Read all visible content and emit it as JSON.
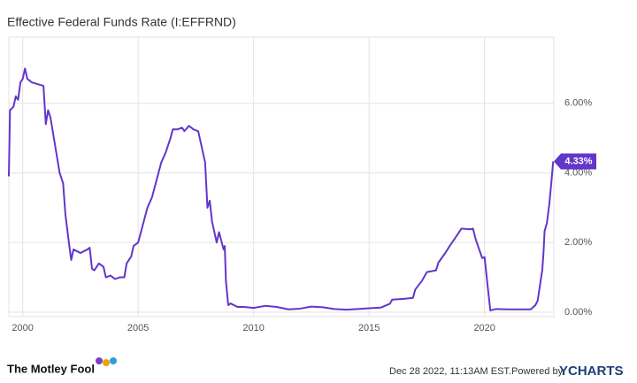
{
  "chart_data": {
    "type": "line",
    "title": "Effective Federal Funds Rate (I:EFFRND)",
    "series": [
      {
        "name": "Effective Federal Funds Rate",
        "color": "#6236c9",
        "x": [
          1999.4,
          1999.45,
          1999.6,
          1999.7,
          1999.8,
          1999.9,
          2000.0,
          2000.1,
          2000.2,
          2000.4,
          2000.9,
          2001.0,
          2001.1,
          2001.2,
          2001.4,
          2001.6,
          2001.75,
          2001.85,
          2002.0,
          2002.1,
          2002.2,
          2002.5,
          2002.8,
          2002.9,
          2003.0,
          2003.1,
          2003.3,
          2003.5,
          2003.6,
          2003.8,
          2004.0,
          2004.2,
          2004.4,
          2004.5,
          2004.7,
          2004.8,
          2005.0,
          2005.2,
          2005.4,
          2005.6,
          2005.8,
          2006.0,
          2006.2,
          2006.4,
          2006.5,
          2006.7,
          2006.9,
          2007.0,
          2007.2,
          2007.4,
          2007.6,
          2007.7,
          2007.9,
          2008.0,
          2008.1,
          2008.2,
          2008.4,
          2008.5,
          2008.7,
          2008.75,
          2008.8,
          2008.9,
          2009.0,
          2009.3,
          2009.6,
          2010.0,
          2010.5,
          2011.0,
          2011.5,
          2012.0,
          2012.5,
          2013.0,
          2013.5,
          2014.0,
          2014.5,
          2015.0,
          2015.5,
          2015.9,
          2016.0,
          2016.5,
          2016.9,
          2017.0,
          2017.3,
          2017.5,
          2017.9,
          2018.0,
          2018.3,
          2018.5,
          2018.8,
          2019.0,
          2019.4,
          2019.5,
          2019.6,
          2019.75,
          2019.9,
          2020.0,
          2020.15,
          2020.25,
          2020.5,
          2021.0,
          2021.5,
          2022.0,
          2022.2,
          2022.3,
          2022.4,
          2022.5,
          2022.55,
          2022.6,
          2022.7,
          2022.8,
          2022.9,
          2022.97
        ],
        "values": [
          3.9,
          5.8,
          5.9,
          6.2,
          6.1,
          6.6,
          6.7,
          7.0,
          6.7,
          6.6,
          6.5,
          5.4,
          5.8,
          5.6,
          4.8,
          4.0,
          3.7,
          2.8,
          2.0,
          1.5,
          1.8,
          1.7,
          1.8,
          1.85,
          1.25,
          1.2,
          1.4,
          1.3,
          1.0,
          1.05,
          0.95,
          1.0,
          1.0,
          1.4,
          1.6,
          1.9,
          2.0,
          2.5,
          3.0,
          3.3,
          3.8,
          4.3,
          4.6,
          5.0,
          5.25,
          5.25,
          5.3,
          5.2,
          5.35,
          5.25,
          5.2,
          4.9,
          4.3,
          3.0,
          3.2,
          2.6,
          2.0,
          2.3,
          1.8,
          1.9,
          0.9,
          0.2,
          0.25,
          0.15,
          0.15,
          0.12,
          0.18,
          0.15,
          0.08,
          0.1,
          0.16,
          0.14,
          0.09,
          0.07,
          0.09,
          0.11,
          0.13,
          0.24,
          0.36,
          0.38,
          0.41,
          0.65,
          0.91,
          1.15,
          1.2,
          1.42,
          1.7,
          1.91,
          2.2,
          2.4,
          2.38,
          2.4,
          2.13,
          1.83,
          1.55,
          1.58,
          0.65,
          0.05,
          0.09,
          0.08,
          0.08,
          0.08,
          0.2,
          0.33,
          0.77,
          1.21,
          1.68,
          2.33,
          2.56,
          3.08,
          3.78,
          4.33
        ]
      }
    ],
    "last_value_label": {
      "value": 4.33,
      "label": "4.33%"
    },
    "xlim": [
      1999.4,
      2023.0
    ],
    "xticks": [
      2000,
      2005,
      2010,
      2015,
      2020
    ],
    "ylim": [
      -0.13,
      7.9
    ],
    "yticks": [
      {
        "value": 0,
        "label": "0.00%"
      },
      {
        "value": 2,
        "label": "2.00%"
      },
      {
        "value": 4,
        "label": "4.00%"
      },
      {
        "value": 6,
        "label": "6.00%"
      }
    ],
    "grid": true
  },
  "footer": {
    "brand": "The Motley Fool",
    "timestamp": "Dec 28 2022, 11:13AM EST.",
    "powered_by": "Powered by",
    "provider": "YCHARTS"
  }
}
